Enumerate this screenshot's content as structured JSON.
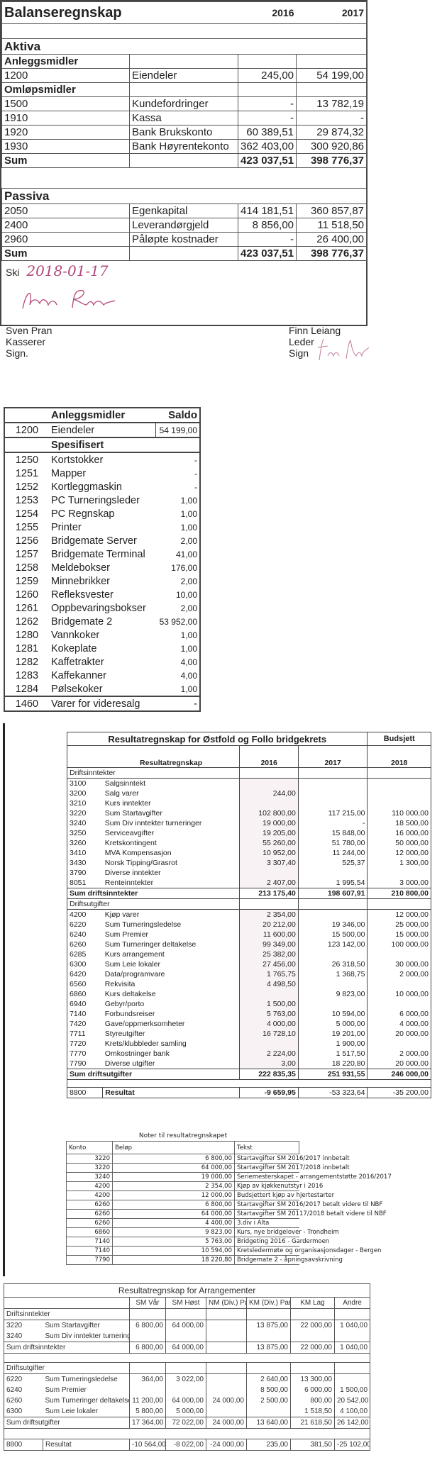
{
  "balance": {
    "title": "Balanseregnskap",
    "years": [
      "2016",
      "2017"
    ],
    "aktiva_label": "Aktiva",
    "aktiva_groups": [
      {
        "label": "Anleggsmidler",
        "rows": [
          {
            "account": "1200",
            "name": "Eiendeler",
            "v2016": "245,00",
            "v2017": "54 199,00"
          }
        ]
      },
      {
        "label": "Omløpsmidler",
        "rows": [
          {
            "account": "1500",
            "name": "Kundefordringer",
            "v2016": "-",
            "v2017": "13 782,19"
          },
          {
            "account": "1910",
            "name": "Kassa",
            "v2016": "-",
            "v2017": "-"
          },
          {
            "account": "1920",
            "name": "Bank Brukskonto",
            "v2016": "60 389,51",
            "v2017": "29 874,32"
          },
          {
            "account": "1930",
            "name": "Bank Høyrentekonto",
            "v2016": "362 403,00",
            "v2017": "300 920,86"
          }
        ]
      }
    ],
    "aktiva_sum": {
      "label": "Sum",
      "v2016": "423 037,51",
      "v2017": "398 776,37"
    },
    "passiva_label": "Passiva",
    "passiva_rows": [
      {
        "account": "2050",
        "name": "Egenkapital",
        "v2016": "414 181,51",
        "v2017": "360 857,87"
      },
      {
        "account": "2400",
        "name": "Leverandørgjeld",
        "v2016": "8 856,00",
        "v2017": "11 518,50"
      },
      {
        "account": "2960",
        "name": "Påløpte kostnader",
        "v2016": "-",
        "v2017": "26 400,00"
      }
    ],
    "passiva_sum": {
      "label": "Sum",
      "v2016": "423 037,51",
      "v2017": "398 776,37"
    },
    "signatures": {
      "place": "Ski",
      "date": "2018-01-17",
      "left": {
        "name": "Sven Pran",
        "role": "Kasserer",
        "sign": "Sign.",
        "signature": "Sven Pran"
      },
      "right": {
        "name": "Finn Leiang",
        "role": "Leder",
        "sign": "Sign",
        "signature": "Finn Leiang"
      },
      "ink_color": "#b0487a"
    }
  },
  "anlegg": {
    "header": "Anleggsmidler",
    "saldo_label": "Saldo",
    "main": {
      "account": "1200",
      "name": "Eiendeler",
      "value": "54 199,00"
    },
    "spec_label": "Spesifisert",
    "items": [
      {
        "account": "1250",
        "name": "Kortstokker",
        "value": "-"
      },
      {
        "account": "1251",
        "name": "Mapper",
        "value": "-"
      },
      {
        "account": "1252",
        "name": "Kortleggmaskin",
        "value": "-"
      },
      {
        "account": "1253",
        "name": "PC Turneringsleder",
        "value": "1,00"
      },
      {
        "account": "1254",
        "name": "PC Regnskap",
        "value": "1,00"
      },
      {
        "account": "1255",
        "name": "Printer",
        "value": "1,00"
      },
      {
        "account": "1256",
        "name": "Bridgemate Server",
        "value": "2,00"
      },
      {
        "account": "1257",
        "name": "Bridgemate Terminal",
        "value": "41,00"
      },
      {
        "account": "1258",
        "name": "Meldebokser",
        "value": "176,00"
      },
      {
        "account": "1259",
        "name": "Minnebrikker",
        "value": "2,00"
      },
      {
        "account": "1260",
        "name": "Refleksvester",
        "value": "10,00"
      },
      {
        "account": "1261",
        "name": "Oppbevaringsbokser",
        "value": "2,00"
      },
      {
        "account": "1262",
        "name": "Bridgemate 2",
        "value": "53 952,00"
      },
      {
        "account": "1280",
        "name": "Vannkoker",
        "value": "1,00"
      },
      {
        "account": "1281",
        "name": "Kokeplate",
        "value": "1,00"
      },
      {
        "account": "1282",
        "name": "Kaffetrakter",
        "value": "4,00"
      },
      {
        "account": "1283",
        "name": "Kaffekanner",
        "value": "4,00"
      },
      {
        "account": "1284",
        "name": "Pølsekoker",
        "value": "1,00"
      }
    ],
    "footer": {
      "account": "1460",
      "name": "Varer for videresalg",
      "value": "-"
    }
  },
  "result": {
    "title": "Resultatregnskap for Østfold og Follo bridgekrets",
    "budget_label": "Budsjett",
    "col_label": "Resultatregnskap",
    "years": [
      "2016",
      "2017",
      "2018"
    ],
    "income_label": "Driftsinntekter",
    "income": [
      [
        "3100",
        "Salgsinntekt",
        "",
        "",
        ""
      ],
      [
        "3200",
        "Salg varer",
        "244,00",
        "",
        ""
      ],
      [
        "3210",
        "Kurs inntekter",
        "",
        "",
        ""
      ],
      [
        "3220",
        "Sum Startavgifter",
        "102 800,00",
        "117 215,00",
        "110 000,00"
      ],
      [
        "3240",
        "Sum Div inntekter turneringer",
        "19 000,00",
        "-",
        "18 500,00"
      ],
      [
        "3250",
        "Serviceavgifter",
        "19 205,00",
        "15 848,00",
        "16 000,00"
      ],
      [
        "3260",
        "Kretskontingent",
        "55 260,00",
        "51 780,00",
        "50 000,00"
      ],
      [
        "3410",
        "MVA Kompensasjon",
        "10 952,00",
        "11 244,00",
        "12 000,00"
      ],
      [
        "3430",
        "Norsk Tipping/Grasrot",
        "3 307,40",
        "525,37",
        "1 300,00"
      ],
      [
        "3790",
        "Diverse inntekter",
        "",
        "",
        ""
      ],
      [
        "8051",
        "Renteinntekter",
        "2 407,00",
        "1 995,54",
        "3 000,00"
      ]
    ],
    "income_sum": [
      "Sum driftsinntekter",
      "213 175,40",
      "198 607,91",
      "210 800,00"
    ],
    "expense_label": "Driftsutgifter",
    "expenses": [
      [
        "4200",
        "Kjøp varer",
        "2 354,00",
        "",
        "12 000,00"
      ],
      [
        "6220",
        "Sum Turneringsledelse",
        "20 212,00",
        "19 346,00",
        "25 000,00"
      ],
      [
        "6240",
        "Sum Premier",
        "11 600,00",
        "15 500,00",
        "15 000,00"
      ],
      [
        "6260",
        "Sum Turneringer deltakelse",
        "99 349,00",
        "123 142,00",
        "100 000,00"
      ],
      [
        "6285",
        "Kurs arrangement",
        "25 382,00",
        "",
        ""
      ],
      [
        "6300",
        "Sum Leie lokaler",
        "27 456,00",
        "26 318,50",
        "30 000,00"
      ],
      [
        "6420",
        "Data/programvare",
        "1 765,75",
        "1 368,75",
        "2 000,00"
      ],
      [
        "6560",
        "Rekvisita",
        "4 498,50",
        "",
        ""
      ],
      [
        "6860",
        "Kurs deltakelse",
        "",
        "9 823,00",
        "10 000,00"
      ],
      [
        "6940",
        "Gebyr/porto",
        "1 500,00",
        "",
        ""
      ],
      [
        "7140",
        "Forbundsreiser",
        "5 763,00",
        "10 594,00",
        "6 000,00"
      ],
      [
        "7420",
        "Gave/oppmerksomheter",
        "4 000,00",
        "5 000,00",
        "4 000,00"
      ],
      [
        "7711",
        "Styreutgifter",
        "16 728,10",
        "19 201,00",
        "20 000,00"
      ],
      [
        "7720",
        "Krets/klubbleder samling",
        "",
        "1 900,00",
        ""
      ],
      [
        "7770",
        "Omkostninger bank",
        "2 224,00",
        "1 517,50",
        "2 000,00"
      ],
      [
        "7790",
        "Diverse utgifter",
        "3,00",
        "18 220,80",
        "20 000,00"
      ]
    ],
    "expense_sum": [
      "Sum driftsutgifter",
      "222 835,35",
      "251 931,55",
      "246 000,00"
    ],
    "result_row": [
      "8800",
      "Resultat",
      "-9 659,95",
      "-53 323,64",
      "-35 200,00"
    ]
  },
  "notes": {
    "title": "Noter til resultatregnskapet",
    "headers": [
      "Konto",
      "Beløp",
      "Tekst"
    ],
    "rows": [
      [
        "3220",
        "6 800,00",
        "Startavgifter SM 2016/2017 innbetalt"
      ],
      [
        "3220",
        "64 000,00",
        "Startavgifter SM 2017/2018 innbetalt"
      ],
      [
        "3240",
        "19 000,00",
        "Seriemesterskapet - arrangementstøtte 2016/2017"
      ],
      [
        "4200",
        "2 354,00",
        "Kjøp av kjøkkenutstyr i 2016"
      ],
      [
        "4200",
        "12 000,00",
        "Budsjettert kjøp av hjertestarter"
      ],
      [
        "6260",
        "6 800,00",
        "Startavgifter SM 2016/2017 betalt videre til NBF"
      ],
      [
        "6260",
        "64 000,00",
        "Startavgifter SM 20117/2018 betalt videre til NBF"
      ],
      [
        "6260",
        "4 400,00",
        "3.div i Alta"
      ],
      [
        "6860",
        "9 823,00",
        "Kurs, nye bridgelover - Trondheim"
      ],
      [
        "7140",
        "5 763,00",
        "Bridgeting 2016 - Gardermoen"
      ],
      [
        "7140",
        "10 594,00",
        "Kretsledermøte og organisasjonsdager - Bergen"
      ],
      [
        "7790",
        "18 220,80",
        "Bridgemate 2 - åpningsavskrivning"
      ]
    ]
  },
  "arrangements": {
    "title": "Resultatregnskap for Arrangementer",
    "columns": [
      "SM Vår",
      "SM Høst",
      "NM (Div.) Par",
      "KM (Div.) Par",
      "KM Lag",
      "Andre"
    ],
    "income_label": "Driftsinntekter",
    "income": [
      [
        "3220",
        "Sum Startavgifter",
        "6 800,00",
        "64 000,00",
        "",
        "13 875,00",
        "22 000,00",
        "1 040,00"
      ],
      [
        "3240",
        "Sum Div inntekter turneringer",
        "",
        "",
        "",
        "",
        "",
        ""
      ]
    ],
    "income_sum": [
      "Sum driftsinntekter",
      "6 800,00",
      "64 000,00",
      "",
      "13 875,00",
      "22 000,00",
      "1 040,00"
    ],
    "expense_label": "Driftsutgifter",
    "expenses": [
      [
        "6220",
        "Sum Turneringsledelse",
        "364,00",
        "3 022,00",
        "",
        "2 640,00",
        "13 300,00",
        ""
      ],
      [
        "6240",
        "Sum Premier",
        "",
        "",
        "",
        "8 500,00",
        "6 000,00",
        "1 500,00"
      ],
      [
        "6260",
        "Sum Turneringer deltakelse",
        "11 200,00",
        "64 000,00",
        "24 000,00",
        "2 500,00",
        "800,00",
        "20 542,00"
      ],
      [
        "6300",
        "Sum Leie lokaler",
        "5 800,00",
        "5 000,00",
        "",
        "",
        "1 518,50",
        "4 100,00"
      ]
    ],
    "expense_sum": [
      "Sum driftsutgifter",
      "17 364,00",
      "72 022,00",
      "24 000,00",
      "13 640,00",
      "21 618,50",
      "26 142,00"
    ],
    "result_row": [
      "8800",
      "Resultat",
      "-10 564,00",
      "-8 022,00",
      "-24 000,00",
      "235,00",
      "381,50",
      "-25 102,00"
    ]
  }
}
